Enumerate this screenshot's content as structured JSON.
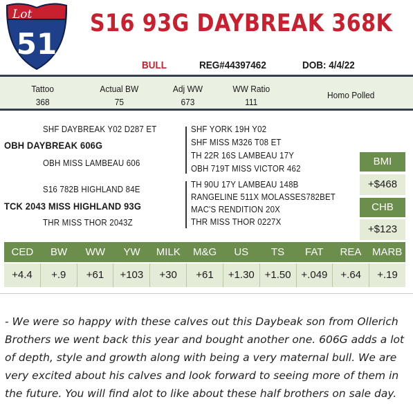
{
  "lot": {
    "label": "Lot",
    "number": "51"
  },
  "bull": {
    "name": "S16 93G DAYBREAK 368K",
    "sex": "BULL",
    "reg": "REG#44397462",
    "dob": "DOB: 4/4/22"
  },
  "stats": [
    {
      "label": "Tattoo",
      "value": "368"
    },
    {
      "label": "Actual BW",
      "value": "75"
    },
    {
      "label": "Adj WW",
      "value": "673"
    },
    {
      "label": "WW Ratio",
      "value": "111"
    },
    {
      "label": "Homo Polled",
      "value": ""
    }
  ],
  "pedigree": {
    "sire": {
      "name": "OBH DAYBREAK 606G",
      "sire": "SHF DAYBREAK Y02 D287 ET",
      "dam": "OBH MISS LAMBEAU 606",
      "ancestors": [
        "SHF YORK 19H Y02",
        "SHF MISS M326 T08 ET",
        "TH 22R 16S LAMBEAU 17Y",
        "OBH 719T MISS VICTOR 462"
      ]
    },
    "dam": {
      "name": "TCK 2043 MISS HIGHLAND 93G",
      "sire": "S16 782B HIGHLAND 84E",
      "dam": "THR MISS THOR 2043Z",
      "ancestors": [
        "TH 90U 17Y LAMBEAU 148B",
        "RANGELINE 511X MOLASSES782BET",
        "MAC'S RENDITION 20X",
        "THR MISS THOR 0227X"
      ]
    }
  },
  "indexes": [
    {
      "label": "BMI",
      "value": "+$468"
    },
    {
      "label": "CHB",
      "value": "+$123"
    }
  ],
  "epds": {
    "headers": [
      "CED",
      "BW",
      "WW",
      "YW",
      "MILK",
      "M&G",
      "US",
      "TS",
      "FAT",
      "REA",
      "MARB"
    ],
    "values": [
      "+4.4",
      "+.9",
      "+61",
      "+103",
      "+30",
      "+61",
      "+1.30",
      "+1.50",
      "+.049",
      "+.64",
      "+.19"
    ]
  },
  "comment": "- We were so happy with these calves out this Daybeak son from Ollerich Brothers we went back this year and bought another one. 606G adds a lot of depth, style and growth along with being a very maternal bull. We are very excited about his calves and look forward to seeing more of them in the future. You will find alot to like about these half brothers on sale day.",
  "colors": {
    "title_red": "#c8202f",
    "shield_blue": "#1e3f8a",
    "green": "#6b8e4c",
    "light_green": "#e4ecd8",
    "bar_green": "#eaf0e2",
    "navy_rule": "#333d4d"
  }
}
